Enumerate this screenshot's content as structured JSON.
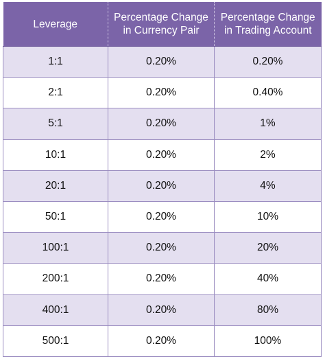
{
  "header": {
    "col1": "Leverage",
    "col2_line1": "Percentage Change",
    "col2_line2": "in Currency Pair",
    "col3_line1": "Percentage Change",
    "col3_line2": "in Trading Account"
  },
  "rows": [
    {
      "leverage": "1:1",
      "pair": "0.20%",
      "account": "0.20%"
    },
    {
      "leverage": "2:1",
      "pair": "0.20%",
      "account": "0.40%"
    },
    {
      "leverage": "5:1",
      "pair": "0.20%",
      "account": "1%"
    },
    {
      "leverage": "10:1",
      "pair": "0.20%",
      "account": "2%"
    },
    {
      "leverage": "20:1",
      "pair": "0.20%",
      "account": "4%"
    },
    {
      "leverage": "50:1",
      "pair": "0.20%",
      "account": "10%"
    },
    {
      "leverage": "100:1",
      "pair": "0.20%",
      "account": "20%"
    },
    {
      "leverage": "200:1",
      "pair": "0.20%",
      "account": "40%"
    },
    {
      "leverage": "400:1",
      "pair": "0.20%",
      "account": "80%"
    },
    {
      "leverage": "500:1",
      "pair": "0.20%",
      "account": "100%"
    }
  ],
  "colors": {
    "header_bg": "#7b64a8",
    "header_text": "#ffffff",
    "row_alt_bg": "#e4dff0",
    "row_bg": "#ffffff"
  }
}
